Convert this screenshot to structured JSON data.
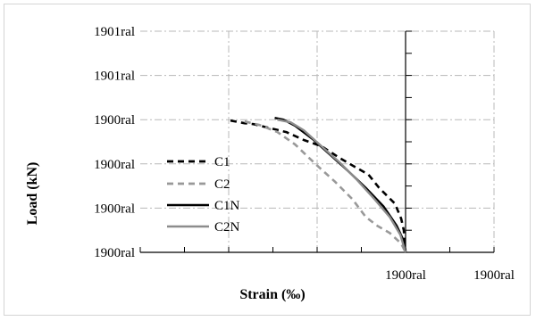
{
  "chart_data": {
    "type": "line",
    "xlabel": "Strain (‰)",
    "ylabel": "Load (kN)",
    "xlim": [
      -3,
      1
    ],
    "ylim": [
      0,
      2.5
    ],
    "y_tick_labels": [
      "1900ral",
      "1900ral",
      "1900ral",
      "1900ral",
      "1901ral",
      "1901ral"
    ],
    "x_tick_labels": [
      "1900ral",
      "1900ral"
    ],
    "grid": true,
    "grid_style": "dash-dot",
    "legend_position": "left-center",
    "series": [
      {
        "name": "C1",
        "color": "#000000",
        "dash": "dashed",
        "x": [
          -1.98,
          -1.82,
          -1.72,
          -1.6,
          -1.35,
          -1.15,
          -0.95,
          -0.75,
          -0.58,
          -0.42,
          -0.3,
          -0.12,
          -0.05,
          -0.02,
          0
        ],
        "y": [
          1.49,
          1.46,
          1.45,
          1.42,
          1.36,
          1.27,
          1.2,
          1.07,
          0.97,
          0.88,
          0.73,
          0.55,
          0.38,
          0.25,
          0
        ]
      },
      {
        "name": "C2",
        "color": "#999999",
        "dash": "dashed",
        "x": [
          -1.82,
          -1.65,
          -1.45,
          -1.25,
          -1.02,
          -0.8,
          -0.6,
          -0.45,
          -0.32,
          -0.18,
          -0.05,
          0
        ],
        "y": [
          1.48,
          1.44,
          1.36,
          1.22,
          1.0,
          0.8,
          0.6,
          0.4,
          0.3,
          0.22,
          0.1,
          0
        ]
      },
      {
        "name": "C1N",
        "color": "#000000",
        "dash": "solid",
        "x": [
          -1.48,
          -1.38,
          -1.25,
          -1.05,
          -0.85,
          -0.65,
          -0.45,
          -0.25,
          -0.1,
          -0.03,
          0
        ],
        "y": [
          1.52,
          1.5,
          1.43,
          1.28,
          1.1,
          0.92,
          0.73,
          0.52,
          0.3,
          0.15,
          0
        ]
      },
      {
        "name": "C2N",
        "color": "#8c8c8c",
        "dash": "solid",
        "x": [
          -1.45,
          -1.3,
          -1.15,
          -0.95,
          -0.75,
          -0.55,
          -0.35,
          -0.18,
          -0.06,
          0
        ],
        "y": [
          1.5,
          1.47,
          1.38,
          1.2,
          1.02,
          0.82,
          0.6,
          0.4,
          0.2,
          0
        ]
      }
    ]
  }
}
